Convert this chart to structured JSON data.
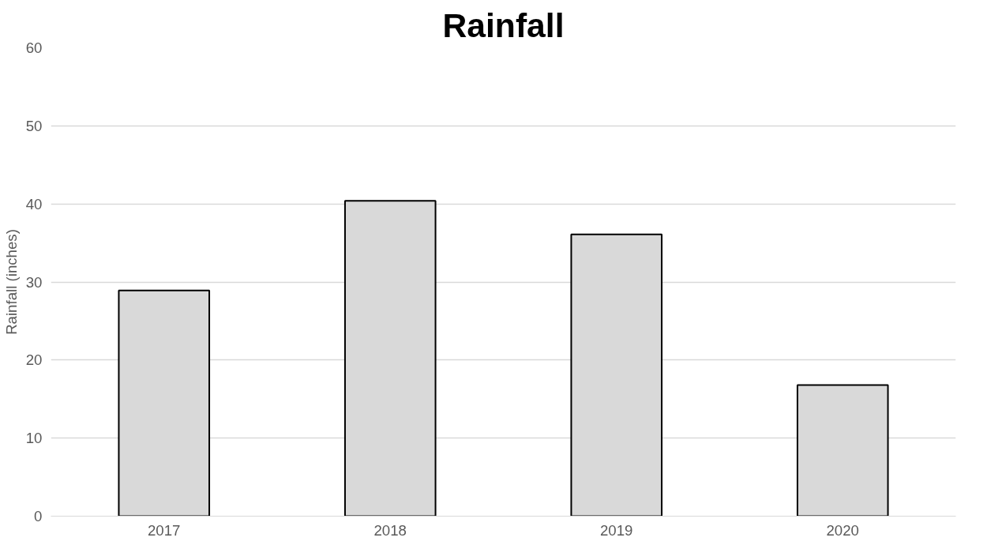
{
  "chart_data": {
    "type": "bar",
    "title": "Rainfall",
    "ylabel": "Rainfall (inches)",
    "categories": [
      "2017",
      "2018",
      "2019",
      "2020"
    ],
    "values": [
      28.9,
      40.4,
      36.1,
      16.8
    ],
    "color": "#d9d9d9",
    "ylim": [
      0,
      60
    ],
    "yticks": [
      0,
      10,
      20,
      30,
      40,
      50,
      60
    ],
    "grid": "y"
  }
}
